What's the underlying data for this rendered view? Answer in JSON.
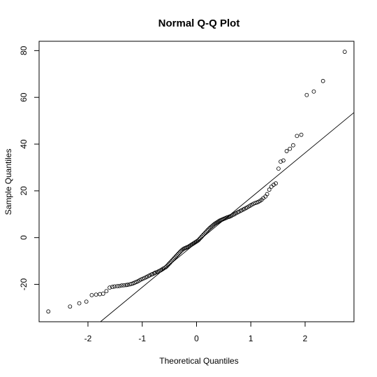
{
  "chart_data": {
    "type": "scatter",
    "title": "Normal Q-Q Plot",
    "xlabel": "Theoretical Quantiles",
    "ylabel": "Sample Quantiles",
    "xlim": [
      -2.9,
      2.9
    ],
    "ylim": [
      -36,
      84
    ],
    "x_ticks": [
      -2,
      -1,
      0,
      1,
      2
    ],
    "y_ticks": [
      -20,
      0,
      20,
      40,
      60,
      80
    ],
    "reference_line": {
      "points": [
        [
          -1.77,
          -36
        ],
        [
          2.9,
          53.5
        ]
      ]
    },
    "points": [
      [
        -2.73,
        -31.6
      ],
      [
        -2.33,
        -29.5
      ],
      [
        -2.16,
        -28.1
      ],
      [
        -2.03,
        -27.4
      ],
      [
        -1.93,
        -24.6
      ],
      [
        -1.85,
        -24.4
      ],
      [
        -1.78,
        -24.2
      ],
      [
        -1.72,
        -24.0
      ],
      [
        -1.66,
        -22.9
      ],
      [
        -1.6,
        -21.4
      ],
      [
        -1.55,
        -21.1
      ],
      [
        -1.51,
        -20.9
      ],
      [
        -1.46,
        -20.8
      ],
      [
        -1.42,
        -20.7
      ],
      [
        -1.38,
        -20.5
      ],
      [
        -1.34,
        -20.4
      ],
      [
        -1.3,
        -20.3
      ],
      [
        -1.27,
        -20.2
      ],
      [
        -1.23,
        -20.0
      ],
      [
        -1.2,
        -19.8
      ],
      [
        -1.17,
        -19.6
      ],
      [
        -1.14,
        -19.3
      ],
      [
        -1.11,
        -19.0
      ],
      [
        -1.08,
        -18.7
      ],
      [
        -1.05,
        -18.3
      ],
      [
        -1.02,
        -17.9
      ],
      [
        -0.99,
        -17.6
      ],
      [
        -0.96,
        -17.3
      ],
      [
        -0.93,
        -17.0
      ],
      [
        -0.91,
        -16.7
      ],
      [
        -0.88,
        -16.4
      ],
      [
        -0.86,
        -16.1
      ],
      [
        -0.83,
        -15.8
      ],
      [
        -0.81,
        -15.6
      ],
      [
        -0.78,
        -15.3
      ],
      [
        -0.76,
        -15.0
      ],
      [
        -0.73,
        -14.8
      ],
      [
        -0.71,
        -14.6
      ],
      [
        -0.69,
        -14.3
      ],
      [
        -0.66,
        -14.0
      ],
      [
        -0.64,
        -13.7
      ],
      [
        -0.62,
        -13.4
      ],
      [
        -0.6,
        -13.1
      ],
      [
        -0.57,
        -12.7
      ],
      [
        -0.55,
        -12.3
      ],
      [
        -0.53,
        -11.8
      ],
      [
        -0.51,
        -11.3
      ],
      [
        -0.49,
        -10.8
      ],
      [
        -0.47,
        -10.3
      ],
      [
        -0.45,
        -9.8
      ],
      [
        -0.43,
        -9.3
      ],
      [
        -0.41,
        -8.8
      ],
      [
        -0.39,
        -8.3
      ],
      [
        -0.37,
        -7.8
      ],
      [
        -0.35,
        -7.3
      ],
      [
        -0.33,
        -6.8
      ],
      [
        -0.31,
        -6.3
      ],
      [
        -0.29,
        -5.8
      ],
      [
        -0.27,
        -5.4
      ],
      [
        -0.25,
        -5.0
      ],
      [
        -0.23,
        -4.7
      ],
      [
        -0.21,
        -4.5
      ],
      [
        -0.19,
        -4.3
      ],
      [
        -0.17,
        -4.1
      ],
      [
        -0.15,
        -3.9
      ],
      [
        -0.13,
        -3.6
      ],
      [
        -0.11,
        -3.3
      ],
      [
        -0.09,
        -3.0
      ],
      [
        -0.07,
        -2.7
      ],
      [
        -0.05,
        -2.4
      ],
      [
        -0.03,
        -2.1
      ],
      [
        -0.01,
        -1.8
      ],
      [
        0.01,
        -1.5
      ],
      [
        0.03,
        -1.2
      ],
      [
        0.05,
        -0.7
      ],
      [
        0.07,
        -0.2
      ],
      [
        0.09,
        0.3
      ],
      [
        0.11,
        0.8
      ],
      [
        0.13,
        1.3
      ],
      [
        0.15,
        1.8
      ],
      [
        0.17,
        2.3
      ],
      [
        0.19,
        2.8
      ],
      [
        0.21,
        3.3
      ],
      [
        0.23,
        3.8
      ],
      [
        0.25,
        4.2
      ],
      [
        0.27,
        4.6
      ],
      [
        0.29,
        5.0
      ],
      [
        0.31,
        5.4
      ],
      [
        0.33,
        5.8
      ],
      [
        0.35,
        6.1
      ],
      [
        0.37,
        6.4
      ],
      [
        0.39,
        6.7
      ],
      [
        0.41,
        7.0
      ],
      [
        0.43,
        7.3
      ],
      [
        0.45,
        7.5
      ],
      [
        0.47,
        7.7
      ],
      [
        0.49,
        7.9
      ],
      [
        0.51,
        8.1
      ],
      [
        0.53,
        8.3
      ],
      [
        0.55,
        8.5
      ],
      [
        0.57,
        8.7
      ],
      [
        0.6,
        8.9
      ],
      [
        0.62,
        9.1
      ],
      [
        0.64,
        9.3
      ],
      [
        0.66,
        9.6
      ],
      [
        0.69,
        9.9
      ],
      [
        0.71,
        10.2
      ],
      [
        0.73,
        10.5
      ],
      [
        0.76,
        10.8
      ],
      [
        0.78,
        11.1
      ],
      [
        0.81,
        11.4
      ],
      [
        0.83,
        11.7
      ],
      [
        0.86,
        12.0
      ],
      [
        0.88,
        12.3
      ],
      [
        0.91,
        12.6
      ],
      [
        0.93,
        12.9
      ],
      [
        0.96,
        13.3
      ],
      [
        0.99,
        13.7
      ],
      [
        1.02,
        14.1
      ],
      [
        1.05,
        14.5
      ],
      [
        1.08,
        14.8
      ],
      [
        1.11,
        15.0
      ],
      [
        1.14,
        15.3
      ],
      [
        1.17,
        15.7
      ],
      [
        1.2,
        16.2
      ],
      [
        1.23,
        16.9
      ],
      [
        1.27,
        17.6
      ],
      [
        1.3,
        18.6
      ],
      [
        1.34,
        20.5
      ],
      [
        1.38,
        21.8
      ],
      [
        1.42,
        22.6
      ],
      [
        1.46,
        23.2
      ],
      [
        1.51,
        29.5
      ],
      [
        1.55,
        32.5
      ],
      [
        1.6,
        33.0
      ],
      [
        1.66,
        37.0
      ],
      [
        1.72,
        38.0
      ],
      [
        1.78,
        39.5
      ],
      [
        1.85,
        43.5
      ],
      [
        1.93,
        44.0
      ],
      [
        2.03,
        61.0
      ],
      [
        2.16,
        62.5
      ],
      [
        2.33,
        67.0
      ],
      [
        2.73,
        79.5
      ]
    ]
  }
}
